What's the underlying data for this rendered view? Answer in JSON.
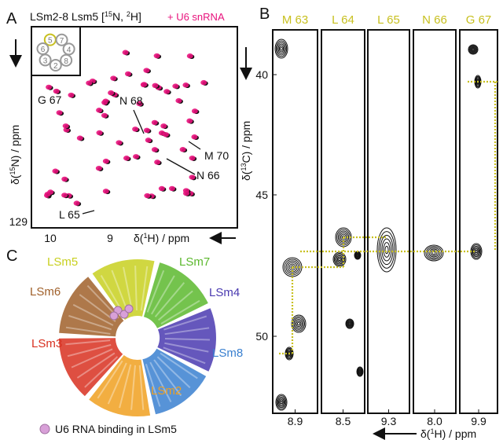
{
  "panels": {
    "a": {
      "label": "A",
      "title": {
        "main": "LSm2-8 Lsm5 [",
        "sup1": "15",
        "mid": "N, ",
        "sup2": "2",
        "end": "H]"
      },
      "added": "+ U6 snRNA",
      "inset_numbers": [
        "5",
        "7",
        "4",
        "8",
        "2",
        "3",
        "6"
      ],
      "y_axis": {
        "pre": "δ(",
        "sup": "15",
        "post": "N) / ppm"
      },
      "x_axis": {
        "pre": "δ(",
        "sup": "1",
        "post": "H) / ppm"
      },
      "x_ticks": [
        "10",
        "9"
      ],
      "y_ticks": [
        "129"
      ],
      "annotations": [
        "G 67",
        "N 68",
        "M 70",
        "N 66",
        "L 65"
      ]
    },
    "b": {
      "label": "B",
      "strips": [
        {
          "residue": "M 63",
          "shift": "8.9"
        },
        {
          "residue": "L 64",
          "shift": "8.5"
        },
        {
          "residue": "L 65",
          "shift": "9.3"
        },
        {
          "residue": "N 66",
          "shift": "8.0"
        },
        {
          "residue": "G 67",
          "shift": "9.9"
        }
      ],
      "y_ticks": [
        "40",
        "45",
        "50"
      ],
      "y_axis": {
        "pre": "δ(",
        "sup": "13",
        "post": "C) / ppm"
      },
      "x_axis": {
        "pre": "δ(",
        "sup": "1",
        "post": "H) / ppm"
      }
    },
    "c": {
      "label": "C",
      "subunits": [
        "LSm5",
        "LSm7",
        "LSm4",
        "LSm8",
        "LSm2",
        "LSm3",
        "LSm6"
      ],
      "legend": "U6 RNA binding in LSm5"
    }
  }
}
